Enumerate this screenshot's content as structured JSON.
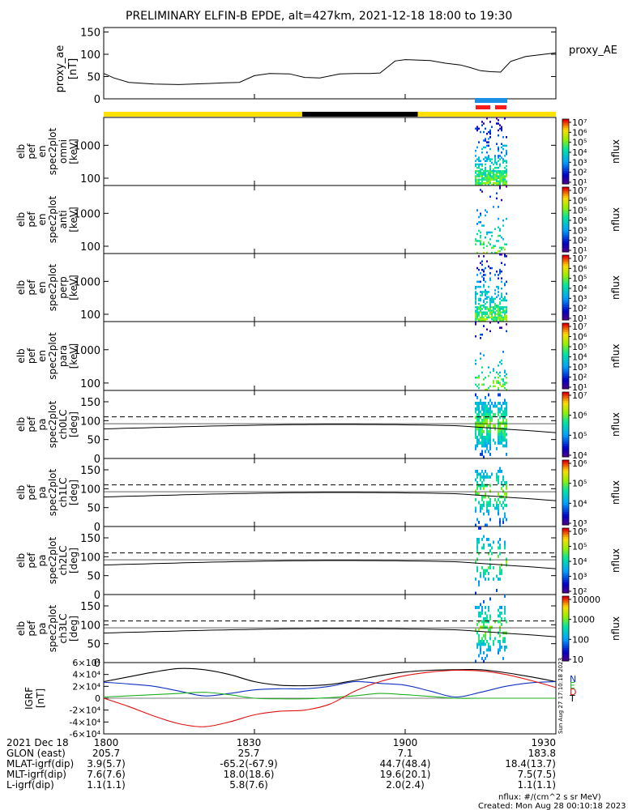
{
  "title": "PRELIMINARY ELFIN-B EPDE, alt=427km, 2021-12-18 18:00 to 19:30",
  "colors": {
    "sun_bar": "#ffe000",
    "shadow_bar": "#000000",
    "bar_blue": "#1a8fe6",
    "bar_red": "#ff1a1a",
    "bx": "#1030c0",
    "by": "#20b020",
    "bz": "#e01010",
    "bt": "#000000"
  },
  "chart_data": [
    {
      "type": "line",
      "name": "proxy_ae",
      "ylabel": "proxy_ae [nT]",
      "legend": "proxy_AE",
      "ylim": [
        0,
        160
      ],
      "yticks": [
        "0",
        "50",
        "100",
        "150"
      ],
      "x": [
        1800,
        1802,
        1805,
        1810,
        1815,
        1820,
        1824,
        1827,
        1830,
        1833,
        1837,
        1840,
        1843,
        1847,
        1850,
        1853,
        1855,
        1858,
        1900,
        1905,
        1908,
        1911,
        1913,
        1915,
        1917,
        1919,
        1921,
        1924,
        1927,
        1930
      ],
      "values": [
        57,
        47,
        37,
        33,
        32,
        34,
        36,
        37,
        52,
        57,
        56,
        48,
        47,
        56,
        57,
        57,
        58,
        85,
        88,
        86,
        80,
        76,
        70,
        63,
        61,
        60,
        84,
        95,
        99,
        103
      ]
    },
    {
      "type": "heatmap",
      "name": "elb pef en spec2plot omni [keV]",
      "ylabel": [
        "elb",
        "pef",
        "en",
        "spec2plot",
        "omni",
        "[keV]"
      ],
      "yticks": [
        "100",
        "1000"
      ],
      "colorbar": {
        "label": "nflux",
        "ticks": [
          "10¹",
          "10²",
          "10³",
          "10⁴",
          "10⁵",
          "10⁶",
          "10⁷"
        ]
      }
    },
    {
      "type": "heatmap",
      "name": "elb pef en spec2plot anti [keV]",
      "ylabel": [
        "elb",
        "pef",
        "en",
        "spec2plot",
        "anti",
        "[keV]"
      ],
      "yticks": [
        "100",
        "1000"
      ],
      "colorbar": {
        "label": "nflux",
        "ticks": [
          "10¹",
          "10²",
          "10³",
          "10⁴",
          "10⁵",
          "10⁶",
          "10⁷"
        ]
      }
    },
    {
      "type": "heatmap",
      "name": "elb pef en spec2plot perp [keV]",
      "ylabel": [
        "elb",
        "pef",
        "en",
        "spec2plot",
        "perp",
        "[keV]"
      ],
      "yticks": [
        "100",
        "1000"
      ],
      "colorbar": {
        "label": "nflux",
        "ticks": [
          "10¹",
          "10²",
          "10³",
          "10⁴",
          "10⁵",
          "10⁶",
          "10⁷"
        ]
      }
    },
    {
      "type": "heatmap",
      "name": "elb pef en spec2plot para [keV]",
      "ylabel": [
        "elb",
        "pef",
        "en",
        "spec2plot",
        "para",
        "[keV]"
      ],
      "yticks": [
        "100",
        "1000"
      ],
      "colorbar": {
        "label": "nflux",
        "ticks": [
          "10¹",
          "10²",
          "10³",
          "10⁴",
          "10⁵",
          "10⁶",
          "10⁷"
        ]
      }
    },
    {
      "type": "heatmap",
      "name": "elb pef pa spec2plot ch0LC [deg]",
      "ylabel": [
        "elb",
        "pef",
        "pa",
        "spec2plot",
        "ch0LC",
        "[deg]"
      ],
      "yticks": [
        "0",
        "50",
        "100",
        "150"
      ],
      "colorbar": {
        "label": "nflux",
        "ticks": [
          "10⁴",
          "10⁵",
          "10⁶",
          "10⁷"
        ]
      }
    },
    {
      "type": "heatmap",
      "name": "elb pef pa spec2plot ch1LC [deg]",
      "ylabel": [
        "elb",
        "pef",
        "pa",
        "spec2plot",
        "ch1LC",
        "[deg]"
      ],
      "yticks": [
        "0",
        "50",
        "100",
        "150"
      ],
      "colorbar": {
        "label": "nflux",
        "ticks": [
          "10³",
          "10⁴",
          "10⁵",
          "10⁶"
        ]
      }
    },
    {
      "type": "heatmap",
      "name": "elb pef pa spec2plot ch2LC [deg]",
      "ylabel": [
        "elb",
        "pef",
        "pa",
        "spec2plot",
        "ch2LC",
        "[deg]"
      ],
      "yticks": [
        "0",
        "50",
        "100",
        "150"
      ],
      "colorbar": {
        "label": "nflux",
        "ticks": [
          "10²",
          "10³",
          "10⁴",
          "10⁵",
          "10⁶"
        ]
      }
    },
    {
      "type": "heatmap",
      "name": "elb pef pa spec2plot ch3LC [deg]",
      "ylabel": [
        "elb",
        "pef",
        "pa",
        "spec2plot",
        "ch3LC",
        "[deg]"
      ],
      "yticks": [
        "0",
        "50",
        "100",
        "150"
      ],
      "colorbar": {
        "label": "nflux",
        "ticks": [
          "10",
          "100",
          "1000",
          "10000"
        ]
      }
    },
    {
      "type": "line",
      "name": "IGRF [nT]",
      "ylabel": [
        "IGRF",
        "[nT]"
      ],
      "ylim": [
        -60000,
        60000
      ],
      "yticks": [
        "-6×10⁴",
        "-4×10⁴",
        "-2×10⁴",
        "0",
        "2×10⁴",
        "4×10⁴",
        "6×10⁴"
      ],
      "legend": [
        "N",
        "E",
        "D",
        "T"
      ],
      "x": [
        1800,
        1805,
        1810,
        1815,
        1820,
        1825,
        1830,
        1835,
        1840,
        1845,
        1850,
        1855,
        1900,
        1905,
        1910,
        1915,
        1920,
        1925,
        1930
      ],
      "series": [
        {
          "name": "T",
          "values": [
            28000,
            36000,
            44000,
            50000,
            48000,
            40000,
            28000,
            22000,
            21000,
            23000,
            30000,
            38000,
            44000,
            47000,
            48000,
            48000,
            43000,
            36000,
            28000
          ]
        },
        {
          "name": "N",
          "values": [
            27000,
            24000,
            20000,
            12000,
            4000,
            8000,
            14000,
            16000,
            16000,
            20000,
            28000,
            25000,
            22000,
            12000,
            2000,
            10000,
            20000,
            26000,
            28000
          ]
        },
        {
          "name": "E",
          "values": [
            2000,
            4000,
            6000,
            8000,
            10000,
            6000,
            0,
            -1000,
            -1000,
            1000,
            4000,
            8000,
            6000,
            3000,
            0,
            0,
            0,
            0,
            0
          ]
        },
        {
          "name": "D",
          "values": [
            0,
            -14000,
            -30000,
            -43000,
            -48000,
            -40000,
            -28000,
            -22000,
            -20000,
            -10000,
            12000,
            28000,
            38000,
            44000,
            47000,
            46000,
            40000,
            30000,
            18000
          ]
        }
      ]
    }
  ],
  "orbit_bar": {
    "segments": [
      {
        "from": 1800,
        "to": 1839.5,
        "kind": "sun"
      },
      {
        "from": 1839.5,
        "to": 1902.5,
        "kind": "shadow"
      },
      {
        "from": 1902.5,
        "to": 1930,
        "kind": "sun"
      }
    ]
  },
  "xaxis": {
    "ticks": [
      "1800",
      "1830",
      "1900",
      "1930"
    ],
    "labels": [
      {
        "name": "2021 Dec 18",
        "values": [
          "1800",
          "1830",
          "1900",
          "1930"
        ]
      },
      {
        "name": "GLON (east)",
        "values": [
          "205.7",
          "25.7",
          "7.1",
          "183.8"
        ]
      },
      {
        "name": "MLAT-igrf(dip)",
        "values": [
          "3.9(5.7)",
          "-65.2(-67.9)",
          "44.7(48.4)",
          "18.4(13.7)"
        ]
      },
      {
        "name": "MLT-igrf(dip)",
        "values": [
          "7.6(7.6)",
          "18.0(18.6)",
          "19.6(20.1)",
          "7.5(7.5)"
        ]
      },
      {
        "name": "L-igrf(dip)",
        "values": [
          "1.1(1.1)",
          "5.8(7.6)",
          "2.0(2.4)",
          "1.1(1.1)"
        ]
      }
    ]
  },
  "footer": {
    "units": "nflux: #/(cm^2 s sr MeV)",
    "created": "Created: Mon Aug 28 00:10:18 2023",
    "side_stamp": "Sun Aug 27 17:10:18 2023"
  }
}
